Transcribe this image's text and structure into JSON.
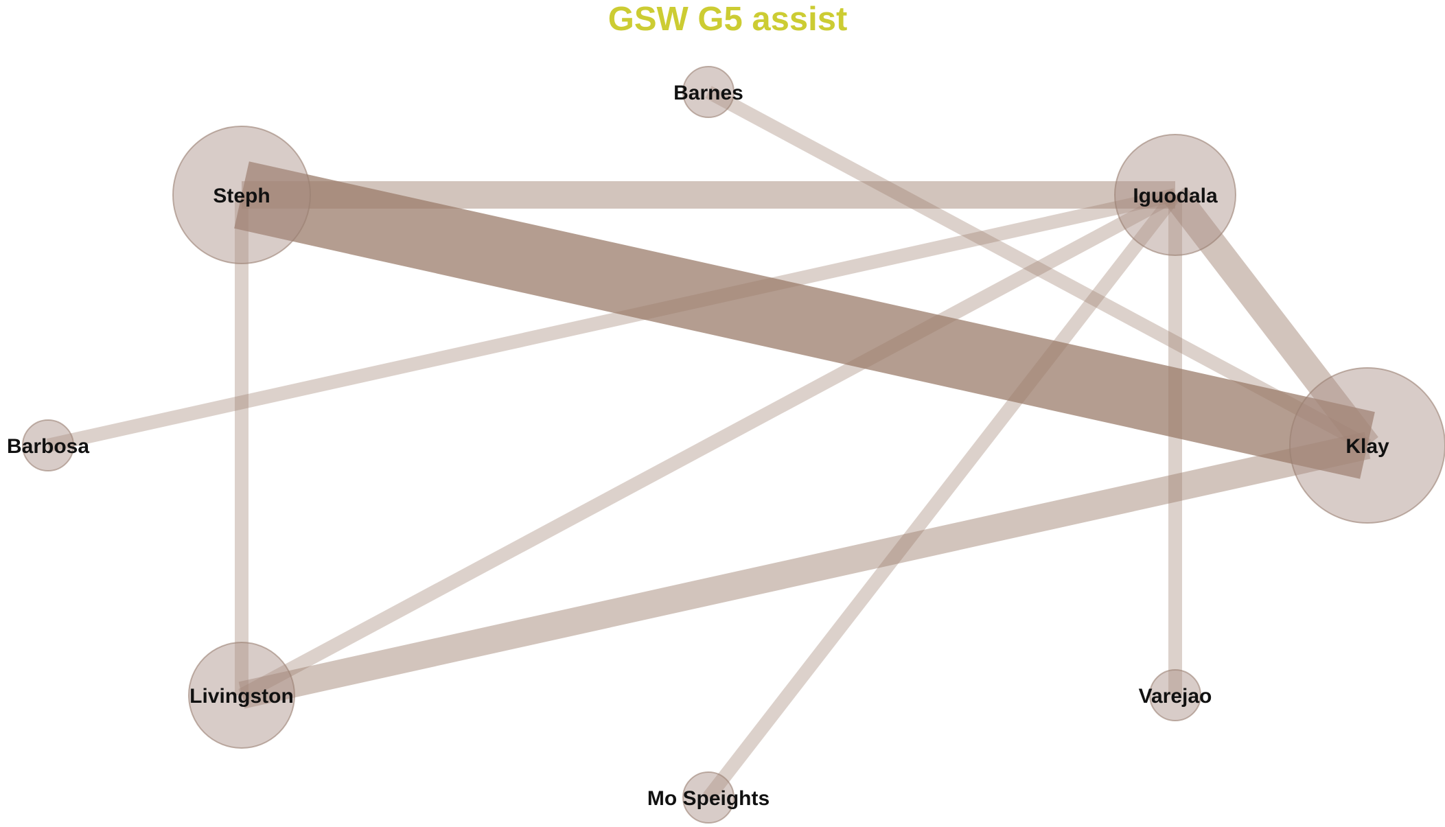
{
  "title": "GSW G5 assist",
  "colors": {
    "title": "#cccc33",
    "node_fill": "#a88f86",
    "node_stroke": "#9a7f72",
    "edge": "#9b7c6b"
  },
  "nodes": [
    {
      "id": "barnes",
      "label": "Barnes"
    },
    {
      "id": "steph",
      "label": "Steph"
    },
    {
      "id": "iguodala",
      "label": "Iguodala"
    },
    {
      "id": "barbosa",
      "label": "Barbosa"
    },
    {
      "id": "klay",
      "label": "Klay"
    },
    {
      "id": "livingston",
      "label": "Livingston"
    },
    {
      "id": "varejao",
      "label": "Varejao"
    },
    {
      "id": "mo-speights",
      "label": "Mo Speights"
    }
  ],
  "edges": [
    {
      "source": "steph",
      "target": "klay",
      "weight": 5
    },
    {
      "source": "steph",
      "target": "iguodala",
      "weight": 2
    },
    {
      "source": "iguodala",
      "target": "klay",
      "weight": 2
    },
    {
      "source": "livingston",
      "target": "klay",
      "weight": 2
    },
    {
      "source": "steph",
      "target": "livingston",
      "weight": 1
    },
    {
      "source": "barnes",
      "target": "klay",
      "weight": 1
    },
    {
      "source": "iguodala",
      "target": "barbosa",
      "weight": 1
    },
    {
      "source": "iguodala",
      "target": "livingston",
      "weight": 1
    },
    {
      "source": "iguodala",
      "target": "mo-speights",
      "weight": 1
    },
    {
      "source": "iguodala",
      "target": "varejao",
      "weight": 1
    }
  ]
}
